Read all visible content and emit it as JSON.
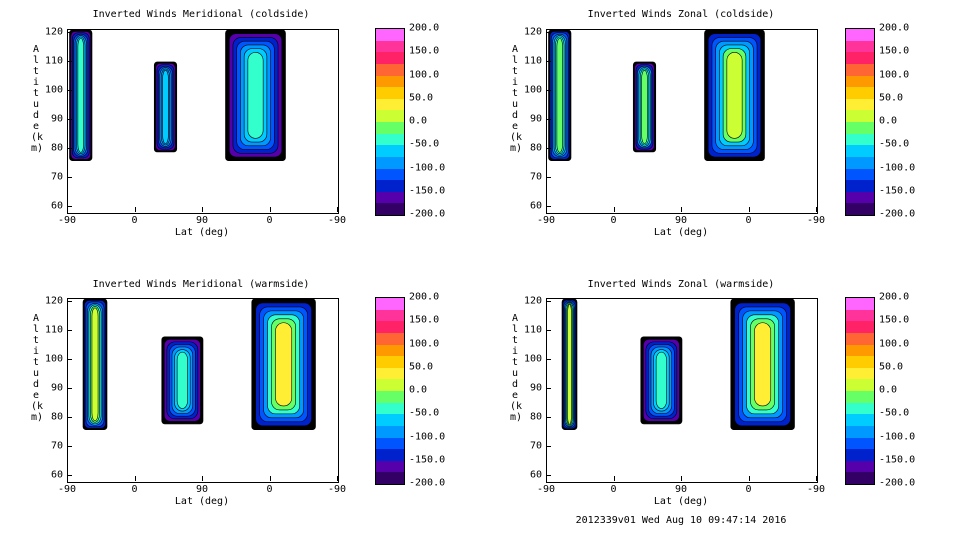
{
  "chart_data": [
    {
      "type": "heatmap",
      "title": "Inverted Winds Meridional (coldside)",
      "xlabel": "Lat (deg)",
      "ylabel": "Altitude (km)",
      "xticks": [
        "-90",
        "0",
        "90",
        "0",
        "-90"
      ],
      "yticks": [
        "120",
        "110",
        "100",
        "90",
        "80",
        "70",
        "60"
      ],
      "ylim": [
        58,
        121
      ],
      "colorbar": [
        "200.0",
        "150.0",
        "100.0",
        "50.0",
        "0.0",
        "-50.0",
        "-100.0",
        "-150.0",
        "-200.0"
      ],
      "clim": [
        -200,
        200
      ],
      "regions": [
        {
          "lat_range": [
            -88,
            -58
          ],
          "alt_range": [
            76,
            121
          ],
          "mean": -30
        },
        {
          "lat_range": [
            25,
            55
          ],
          "alt_range": [
            79,
            110
          ],
          "mean": -60
        },
        {
          "lat_range": [
            120,
            200
          ],
          "alt_range": [
            76,
            121
          ],
          "mean": -40
        }
      ]
    },
    {
      "type": "heatmap",
      "title": "Inverted Winds Zonal (coldside)",
      "xlabel": "Lat (deg)",
      "ylabel": "Altitude (km)",
      "xticks": [
        "-90",
        "0",
        "90",
        "0",
        "-90"
      ],
      "yticks": [
        "120",
        "110",
        "100",
        "90",
        "80",
        "70",
        "60"
      ],
      "ylim": [
        58,
        121
      ],
      "colorbar": [
        "200.0",
        "150.0",
        "100.0",
        "50.0",
        "0.0",
        "-50.0",
        "-100.0",
        "-150.0",
        "-200.0"
      ],
      "clim": [
        -200,
        200
      ],
      "regions": [
        {
          "lat_range": [
            -88,
            -58
          ],
          "alt_range": [
            76,
            121
          ],
          "mean": 0
        },
        {
          "lat_range": [
            25,
            55
          ],
          "alt_range": [
            79,
            110
          ],
          "mean": -20
        },
        {
          "lat_range": [
            120,
            200
          ],
          "alt_range": [
            76,
            121
          ],
          "mean": 10
        }
      ]
    },
    {
      "type": "heatmap",
      "title": "Inverted Winds Meridional (warmside)",
      "xlabel": "Lat (deg)",
      "ylabel": "Altitude (km)",
      "xticks": [
        "-90",
        "0",
        "90",
        "0",
        "-90"
      ],
      "yticks": [
        "120",
        "110",
        "100",
        "90",
        "80",
        "70",
        "60"
      ],
      "ylim": [
        58,
        121
      ],
      "colorbar": [
        "200.0",
        "150.0",
        "100.0",
        "50.0",
        "0.0",
        "-50.0",
        "-100.0",
        "-150.0",
        "-200.0"
      ],
      "clim": [
        -200,
        200
      ],
      "regions": [
        {
          "lat_range": [
            -70,
            -38
          ],
          "alt_range": [
            76,
            121
          ],
          "mean": 20
        },
        {
          "lat_range": [
            35,
            90
          ],
          "alt_range": [
            78,
            108
          ],
          "mean": -50
        },
        {
          "lat_range": [
            155,
            240
          ],
          "alt_range": [
            76,
            121
          ],
          "mean": 30
        }
      ]
    },
    {
      "type": "heatmap",
      "title": "Inverted Winds Zonal (warmside)",
      "xlabel": "Lat (deg)",
      "ylabel": "Altitude (km)",
      "xticks": [
        "-90",
        "0",
        "90",
        "0",
        "-90"
      ],
      "yticks": [
        "120",
        "110",
        "100",
        "90",
        "80",
        "70",
        "60"
      ],
      "ylim": [
        58,
        121
      ],
      "colorbar": [
        "200.0",
        "150.0",
        "100.0",
        "50.0",
        "0.0",
        "-50.0",
        "-100.0",
        "-150.0",
        "-200.0"
      ],
      "clim": [
        -200,
        200
      ],
      "regions": [
        {
          "lat_range": [
            -70,
            -50
          ],
          "alt_range": [
            76,
            121
          ],
          "mean": 20
        },
        {
          "lat_range": [
            35,
            90
          ],
          "alt_range": [
            78,
            108
          ],
          "mean": -40
        },
        {
          "lat_range": [
            155,
            240
          ],
          "alt_range": [
            76,
            121
          ],
          "mean": 30
        }
      ]
    }
  ],
  "footer": "2012339v01 Wed Aug 10 09:47:14 2016",
  "colors": [
    "#ff66ff",
    "#ff3399",
    "#ff2266",
    "#ff6633",
    "#ff9900",
    "#ffcc00",
    "#ffee33",
    "#ccff33",
    "#66ff66",
    "#33ffcc",
    "#00ccff",
    "#0099ff",
    "#0055ff",
    "#0022cc",
    "#5500aa",
    "#330066"
  ]
}
